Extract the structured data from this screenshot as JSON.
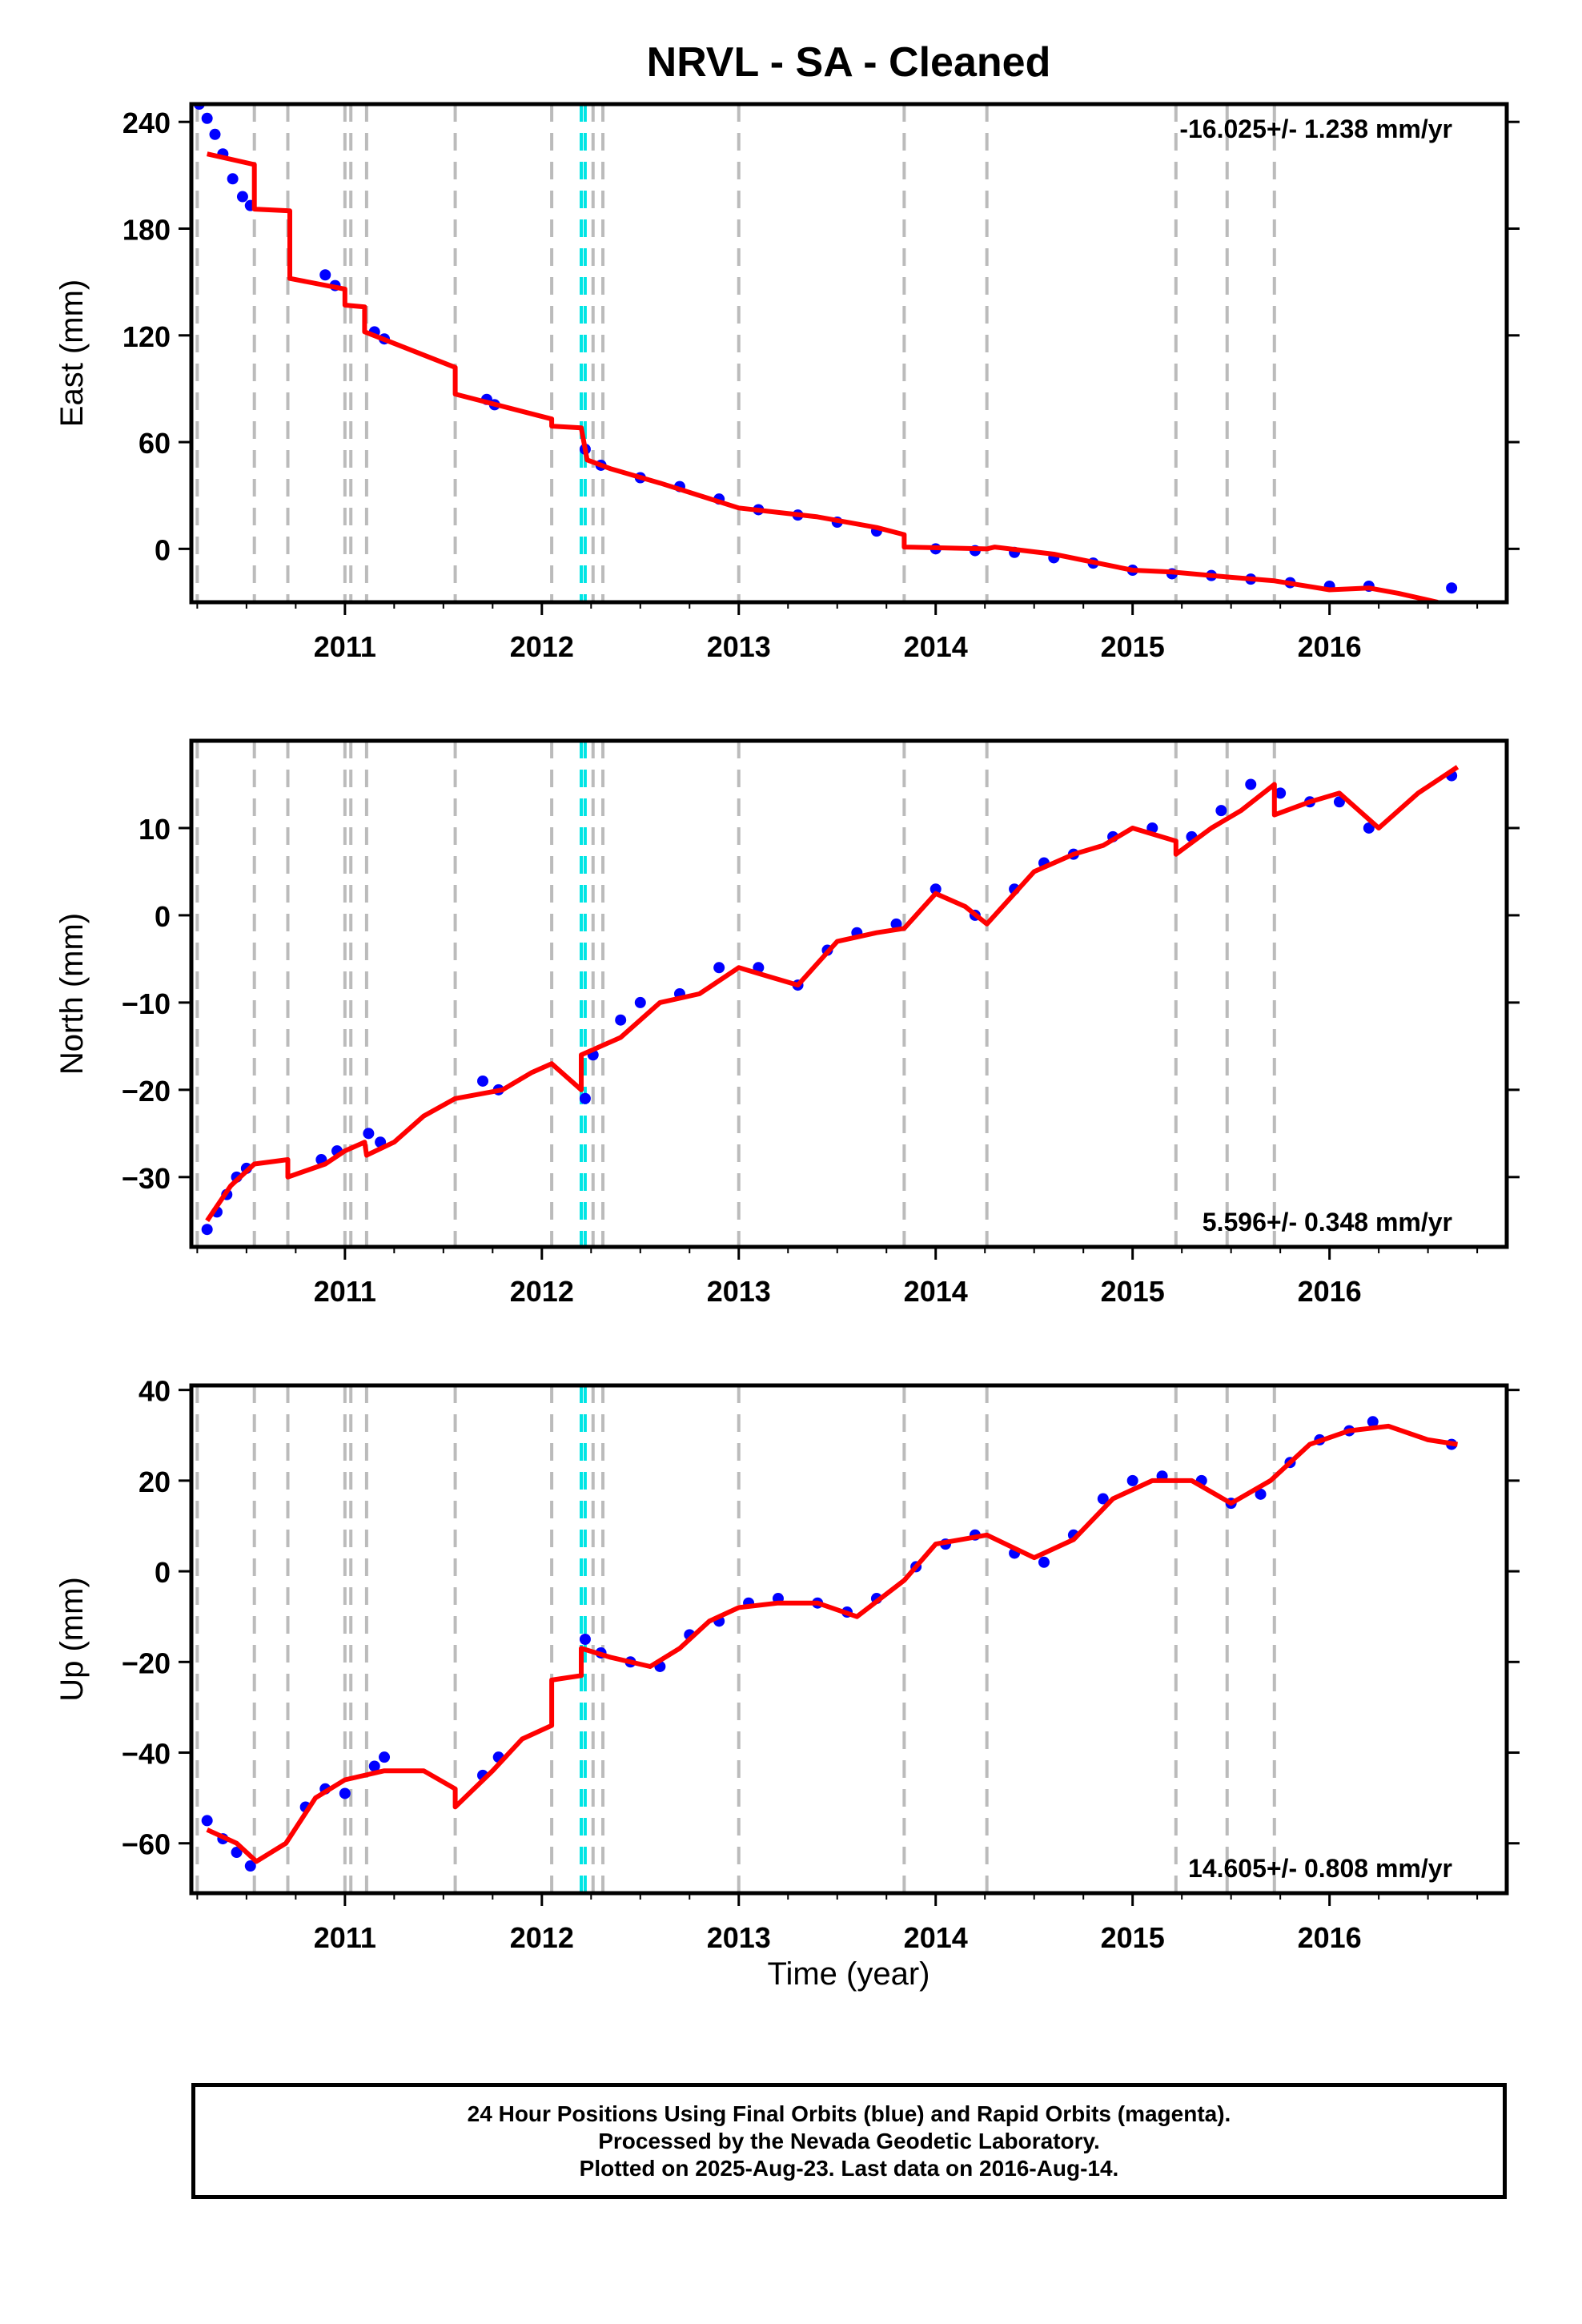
{
  "title": "NRVL  - SA - Cleaned",
  "xlabel": "Time (year)",
  "x_ticks": [
    "2011",
    "2012",
    "2013",
    "2014",
    "2015",
    "2016"
  ],
  "footer": {
    "line1": "24 Hour Positions Using Final Orbits (blue) and Rapid Orbits (magenta).",
    "line2": "Processed by the Nevada Geodetic Laboratory.",
    "line3": "Plotted on 2025-Aug-23. Last data on 2016-Aug-14."
  },
  "colors": {
    "data": "#0000ff",
    "model": "#ff0000",
    "event_gray": "#bbbbbb",
    "event_cyan": "#00e5e5"
  },
  "chart_data": [
    {
      "type": "scatter",
      "ylabel": "East (mm)",
      "rate": "-16.025+/- 1.238 mm/yr",
      "xlim": [
        2010.22,
        2016.9
      ],
      "ylim": [
        -30,
        250
      ],
      "yticks": [
        0,
        60,
        120,
        180,
        240
      ],
      "gray_events": [
        2010.25,
        2010.54,
        2010.71,
        2011.0,
        2011.03,
        2011.11,
        2011.56,
        2012.05,
        2012.26,
        2012.31,
        2013.0,
        2013.84,
        2014.26,
        2015.22,
        2015.48,
        2015.72
      ],
      "cyan_events": [
        2012.2,
        2012.22
      ],
      "model": [
        [
          2010.3,
          222
        ],
        [
          2010.54,
          216
        ],
        [
          2010.54,
          191
        ],
        [
          2010.72,
          190
        ],
        [
          2010.72,
          152
        ],
        [
          2011.0,
          146
        ],
        [
          2011.0,
          137
        ],
        [
          2011.1,
          136
        ],
        [
          2011.1,
          122
        ],
        [
          2011.56,
          102
        ],
        [
          2011.56,
          87
        ],
        [
          2012.05,
          73
        ],
        [
          2012.05,
          69
        ],
        [
          2012.2,
          68
        ],
        [
          2012.23,
          50
        ],
        [
          2012.35,
          45
        ],
        [
          2012.6,
          37
        ],
        [
          2013.0,
          23
        ],
        [
          2013.4,
          18
        ],
        [
          2013.7,
          12
        ],
        [
          2013.84,
          8
        ],
        [
          2013.84,
          1
        ],
        [
          2014.26,
          0
        ],
        [
          2014.3,
          1
        ],
        [
          2014.6,
          -3
        ],
        [
          2015.0,
          -12
        ],
        [
          2015.2,
          -13
        ],
        [
          2015.5,
          -16
        ],
        [
          2015.72,
          -18
        ],
        [
          2016.0,
          -23
        ],
        [
          2016.2,
          -22
        ],
        [
          2016.35,
          -25
        ],
        [
          2016.55,
          -30
        ]
      ],
      "points": [
        [
          2010.26,
          250
        ],
        [
          2010.3,
          242
        ],
        [
          2010.34,
          233
        ],
        [
          2010.38,
          222
        ],
        [
          2010.43,
          208
        ],
        [
          2010.48,
          198
        ],
        [
          2010.52,
          193
        ],
        [
          2010.9,
          154
        ],
        [
          2010.95,
          148
        ],
        [
          2011.15,
          122
        ],
        [
          2011.2,
          118
        ],
        [
          2011.72,
          84
        ],
        [
          2011.76,
          81
        ],
        [
          2012.22,
          56
        ],
        [
          2012.3,
          47
        ],
        [
          2012.5,
          40
        ],
        [
          2012.7,
          35
        ],
        [
          2012.9,
          28
        ],
        [
          2013.1,
          22
        ],
        [
          2013.3,
          19
        ],
        [
          2013.5,
          15
        ],
        [
          2013.7,
          10
        ],
        [
          2014.0,
          0
        ],
        [
          2014.2,
          -1
        ],
        [
          2014.4,
          -2
        ],
        [
          2014.6,
          -5
        ],
        [
          2014.8,
          -8
        ],
        [
          2015.0,
          -12
        ],
        [
          2015.2,
          -14
        ],
        [
          2015.4,
          -15
        ],
        [
          2015.6,
          -17
        ],
        [
          2015.8,
          -19
        ],
        [
          2016.0,
          -21
        ],
        [
          2016.2,
          -21
        ],
        [
          2016.62,
          -22
        ]
      ]
    },
    {
      "type": "scatter",
      "ylabel": "North (mm)",
      "rate": "5.596+/- 0.348 mm/yr",
      "xlim": [
        2010.22,
        2016.9
      ],
      "ylim": [
        -38,
        20
      ],
      "yticks": [
        -30,
        -20,
        -10,
        0,
        10
      ],
      "gray_events": [
        2010.25,
        2010.54,
        2010.71,
        2011.0,
        2011.03,
        2011.11,
        2011.56,
        2012.05,
        2012.26,
        2012.31,
        2013.0,
        2013.84,
        2014.26,
        2015.22,
        2015.48,
        2015.72
      ],
      "cyan_events": [
        2012.2,
        2012.22
      ],
      "model": [
        [
          2010.3,
          -35
        ],
        [
          2010.42,
          -31
        ],
        [
          2010.54,
          -28.5
        ],
        [
          2010.71,
          -28
        ],
        [
          2010.71,
          -30
        ],
        [
          2010.9,
          -28.5
        ],
        [
          2011.0,
          -27
        ],
        [
          2011.1,
          -26
        ],
        [
          2011.11,
          -27.5
        ],
        [
          2011.25,
          -26
        ],
        [
          2011.4,
          -23
        ],
        [
          2011.56,
          -21
        ],
        [
          2011.8,
          -20
        ],
        [
          2011.95,
          -18
        ],
        [
          2012.05,
          -17
        ],
        [
          2012.2,
          -20
        ],
        [
          2012.2,
          -16
        ],
        [
          2012.4,
          -14
        ],
        [
          2012.6,
          -10
        ],
        [
          2012.8,
          -9
        ],
        [
          2013.0,
          -6
        ],
        [
          2013.15,
          -7
        ],
        [
          2013.3,
          -8
        ],
        [
          2013.5,
          -3
        ],
        [
          2013.7,
          -2
        ],
        [
          2013.84,
          -1.5
        ],
        [
          2014.0,
          2.5
        ],
        [
          2014.15,
          1
        ],
        [
          2014.26,
          -1
        ],
        [
          2014.5,
          5
        ],
        [
          2014.7,
          7
        ],
        [
          2014.85,
          8
        ],
        [
          2015.0,
          10
        ],
        [
          2015.22,
          8.5
        ],
        [
          2015.22,
          7
        ],
        [
          2015.4,
          10
        ],
        [
          2015.55,
          12
        ],
        [
          2015.72,
          15
        ],
        [
          2015.72,
          11.5
        ],
        [
          2015.9,
          13
        ],
        [
          2016.05,
          14
        ],
        [
          2016.25,
          10
        ],
        [
          2016.45,
          14
        ],
        [
          2016.65,
          17
        ]
      ],
      "points": [
        [
          2010.3,
          -36
        ],
        [
          2010.35,
          -34
        ],
        [
          2010.4,
          -32
        ],
        [
          2010.45,
          -30
        ],
        [
          2010.5,
          -29
        ],
        [
          2010.88,
          -28
        ],
        [
          2010.96,
          -27
        ],
        [
          2011.12,
          -25
        ],
        [
          2011.18,
          -26
        ],
        [
          2011.7,
          -19
        ],
        [
          2011.78,
          -20
        ],
        [
          2012.22,
          -21
        ],
        [
          2012.26,
          -16
        ],
        [
          2012.4,
          -12
        ],
        [
          2012.5,
          -10
        ],
        [
          2012.7,
          -9
        ],
        [
          2012.9,
          -6
        ],
        [
          2013.1,
          -6
        ],
        [
          2013.3,
          -8
        ],
        [
          2013.45,
          -4
        ],
        [
          2013.6,
          -2
        ],
        [
          2013.8,
          -1
        ],
        [
          2014.0,
          3
        ],
        [
          2014.2,
          0
        ],
        [
          2014.4,
          3
        ],
        [
          2014.55,
          6
        ],
        [
          2014.7,
          7
        ],
        [
          2014.9,
          9
        ],
        [
          2015.1,
          10
        ],
        [
          2015.3,
          9
        ],
        [
          2015.45,
          12
        ],
        [
          2015.6,
          15
        ],
        [
          2015.75,
          14
        ],
        [
          2015.9,
          13
        ],
        [
          2016.05,
          13
        ],
        [
          2016.2,
          10
        ],
        [
          2016.62,
          16
        ]
      ]
    },
    {
      "type": "scatter",
      "ylabel": "Up (mm)",
      "rate": "14.605+/- 0.808 mm/yr",
      "xlim": [
        2010.22,
        2016.9
      ],
      "ylim": [
        -71,
        41
      ],
      "yticks": [
        -60,
        -40,
        -20,
        0,
        20,
        40
      ],
      "gray_events": [
        2010.25,
        2010.54,
        2010.71,
        2011.0,
        2011.03,
        2011.11,
        2011.56,
        2012.05,
        2012.26,
        2012.31,
        2013.0,
        2013.84,
        2014.26,
        2015.22,
        2015.48,
        2015.72
      ],
      "cyan_events": [
        2012.2,
        2012.22
      ],
      "model": [
        [
          2010.3,
          -57
        ],
        [
          2010.45,
          -60
        ],
        [
          2010.55,
          -64
        ],
        [
          2010.7,
          -60
        ],
        [
          2010.85,
          -50
        ],
        [
          2011.0,
          -46
        ],
        [
          2011.2,
          -44
        ],
        [
          2011.4,
          -44
        ],
        [
          2011.56,
          -48
        ],
        [
          2011.56,
          -52
        ],
        [
          2011.75,
          -44
        ],
        [
          2011.9,
          -37
        ],
        [
          2012.05,
          -34
        ],
        [
          2012.05,
          -24
        ],
        [
          2012.2,
          -23
        ],
        [
          2012.2,
          -17
        ],
        [
          2012.35,
          -19
        ],
        [
          2012.55,
          -21
        ],
        [
          2012.7,
          -17
        ],
        [
          2012.85,
          -11
        ],
        [
          2013.0,
          -8
        ],
        [
          2013.2,
          -7
        ],
        [
          2013.4,
          -7
        ],
        [
          2013.6,
          -10
        ],
        [
          2013.84,
          -2
        ],
        [
          2014.0,
          6
        ],
        [
          2014.26,
          8
        ],
        [
          2014.5,
          3
        ],
        [
          2014.7,
          7
        ],
        [
          2014.9,
          16
        ],
        [
          2015.1,
          20
        ],
        [
          2015.3,
          20
        ],
        [
          2015.5,
          15
        ],
        [
          2015.7,
          20
        ],
        [
          2015.9,
          28
        ],
        [
          2016.1,
          31
        ],
        [
          2016.3,
          32
        ],
        [
          2016.5,
          29
        ],
        [
          2016.65,
          28
        ]
      ],
      "points": [
        [
          2010.3,
          -55
        ],
        [
          2010.38,
          -59
        ],
        [
          2010.45,
          -62
        ],
        [
          2010.52,
          -65
        ],
        [
          2010.8,
          -52
        ],
        [
          2010.9,
          -48
        ],
        [
          2011.0,
          -49
        ],
        [
          2011.15,
          -43
        ],
        [
          2011.2,
          -41
        ],
        [
          2011.7,
          -45
        ],
        [
          2011.78,
          -41
        ],
        [
          2012.22,
          -15
        ],
        [
          2012.3,
          -18
        ],
        [
          2012.45,
          -20
        ],
        [
          2012.6,
          -21
        ],
        [
          2012.75,
          -14
        ],
        [
          2012.9,
          -11
        ],
        [
          2013.05,
          -7
        ],
        [
          2013.2,
          -6
        ],
        [
          2013.4,
          -7
        ],
        [
          2013.55,
          -9
        ],
        [
          2013.7,
          -6
        ],
        [
          2013.9,
          1
        ],
        [
          2014.05,
          6
        ],
        [
          2014.2,
          8
        ],
        [
          2014.4,
          4
        ],
        [
          2014.55,
          2
        ],
        [
          2014.7,
          8
        ],
        [
          2014.85,
          16
        ],
        [
          2015.0,
          20
        ],
        [
          2015.15,
          21
        ],
        [
          2015.35,
          20
        ],
        [
          2015.5,
          15
        ],
        [
          2015.65,
          17
        ],
        [
          2015.8,
          24
        ],
        [
          2015.95,
          29
        ],
        [
          2016.1,
          31
        ],
        [
          2016.22,
          33
        ],
        [
          2016.62,
          28
        ]
      ]
    }
  ]
}
